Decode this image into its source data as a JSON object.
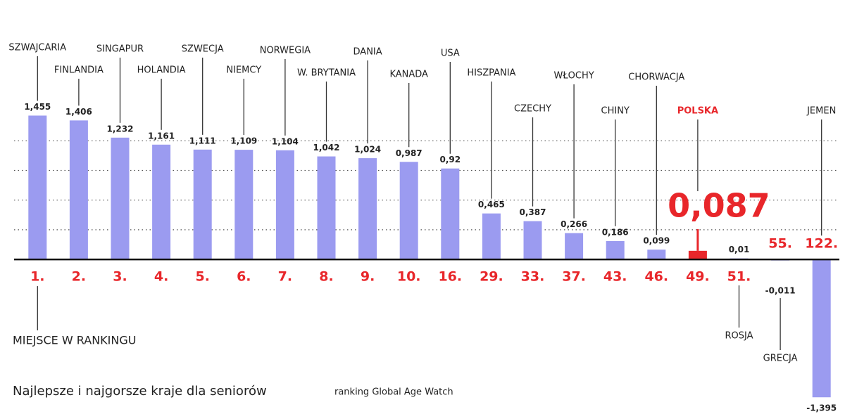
{
  "chart_data": {
    "type": "bar",
    "title": "Najlepsze i najgorsze kraje dla seniorów",
    "subtitle": "ranking Global Age Watch",
    "axis_label": "MIEJSCE W RANKINGU",
    "categories": [
      "1.",
      "2.",
      "3.",
      "4.",
      "5.",
      "6.",
      "7.",
      "8.",
      "9.",
      "10.",
      "16.",
      "29.",
      "33.",
      "37.",
      "43.",
      "46.",
      "49.",
      "51.",
      "55.",
      "122."
    ],
    "countries": [
      "SZWAJCARIA",
      "FINLANDIA",
      "SINGAPUR",
      "HOLANDIA",
      "SZWECJA",
      "NIEMCY",
      "NORWEGIA",
      "W. BRYTANIA",
      "DANIA",
      "KANADA",
      "USA",
      "HISZPANIA",
      "CZECHY",
      "WŁOCHY",
      "CHINY",
      "CHORWACJA",
      "POLSKA",
      "ROSJA",
      "GRECJA",
      "JEMEN"
    ],
    "values": [
      1.455,
      1.406,
      1.232,
      1.161,
      1.111,
      1.109,
      1.104,
      1.042,
      1.024,
      0.987,
      0.92,
      0.465,
      0.387,
      0.266,
      0.186,
      0.099,
      0.087,
      0.01,
      -0.011,
      -1.395
    ],
    "value_labels": [
      "1,455",
      "1,406",
      "1,232",
      "1,161",
      "1,111",
      "1,109",
      "1,104",
      "1,042",
      "1,024",
      "0,987",
      "0,92",
      "0,465",
      "0,387",
      "0,266",
      "0,186",
      "0,099",
      "0,087",
      "0,01",
      "-0,011",
      "-1,395"
    ],
    "colors": [
      "#9b9bf0",
      "#9b9bf0",
      "#9b9bf0",
      "#9b9bf0",
      "#9b9bf0",
      "#9b9bf0",
      "#9b9bf0",
      "#9b9bf0",
      "#9b9bf0",
      "#9b9bf0",
      "#9b9bf0",
      "#9b9bf0",
      "#9b9bf0",
      "#9b9bf0",
      "#9b9bf0",
      "#9b9bf0",
      "#e8262a",
      "#9b9bf0",
      "#9b9bf0",
      "#9b9bf0"
    ],
    "ylim": [
      -1.5,
      1.7
    ],
    "gridlines": [
      0.3,
      0.6,
      0.9,
      1.2
    ],
    "grid": true
  }
}
